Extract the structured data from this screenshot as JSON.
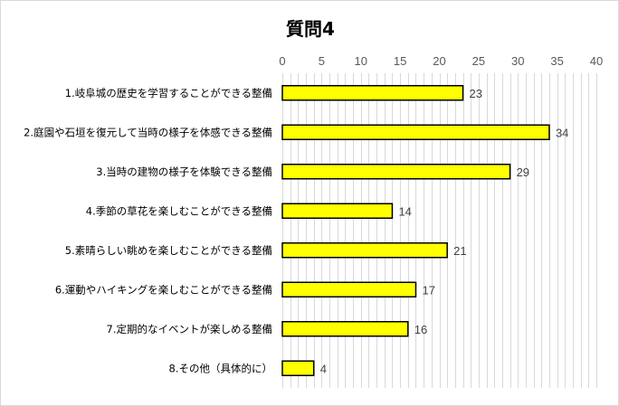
{
  "chart_data": {
    "type": "bar",
    "orientation": "horizontal",
    "title": "質問4",
    "categories": [
      "1.岐阜城の歴史を学習することができる整備",
      "2.庭園や石垣を復元して当時の様子を体感できる整備",
      "3.当時の建物の様子を体験できる整備",
      "4.季節の草花を楽しむことができる整備",
      "5.素晴らしい眺めを楽しむことができる整備",
      "6.運動やハイキングを楽しむことができる整備",
      "7.定期的なイベントが楽しめる整備",
      "8.その他（具体的に）"
    ],
    "values": [
      23,
      34,
      29,
      14,
      21,
      17,
      16,
      4
    ],
    "xlim": [
      0,
      40
    ],
    "xticks": [
      0,
      5,
      10,
      15,
      20,
      25,
      30,
      35,
      40
    ],
    "minor_grid_step": 1,
    "axis_position": "top",
    "grid": true,
    "data_labels": true,
    "colors": {
      "bar_fill": "#ffff00",
      "bar_stroke": "#000000",
      "grid": "#d9d9d9"
    }
  }
}
